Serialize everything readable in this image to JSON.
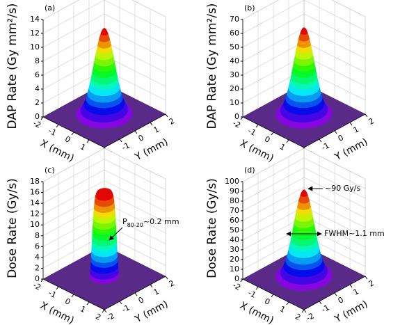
{
  "chart_data": [
    {
      "type": "surface",
      "panel": "(a)",
      "zlabel": "DAP Rate (Gy mm²/s)",
      "xlabel": "X (mm)",
      "ylabel": "Y (mm)",
      "xlim": [
        -2,
        2
      ],
      "xticks": [
        -2,
        -1,
        0,
        1,
        2
      ],
      "ylim": [
        -2,
        2
      ],
      "yticks": [
        -2,
        -1,
        0,
        1,
        2
      ],
      "zlim": [
        0,
        14
      ],
      "zticks": [
        0,
        2,
        4,
        6,
        8,
        10,
        12,
        14
      ],
      "peak": 12.5,
      "fwhm": 1.1,
      "profile": "gaussian",
      "grid": true,
      "annotations": []
    },
    {
      "type": "surface",
      "panel": "(b)",
      "zlabel": "DAP Rate (Gy mm²/s)",
      "xlabel": "X (mm)",
      "ylabel": "Y (mm)",
      "xlim": [
        -2,
        2
      ],
      "xticks": [
        -2,
        -1,
        0,
        1,
        2
      ],
      "ylim": [
        -2,
        2
      ],
      "yticks": [
        -2,
        -1,
        0,
        1,
        2
      ],
      "zlim": [
        0,
        70
      ],
      "zticks": [
        0,
        10,
        20,
        30,
        40,
        50,
        60,
        70
      ],
      "peak": 63,
      "fwhm": 1.1,
      "profile": "gaussian",
      "grid": true,
      "annotations": []
    },
    {
      "type": "surface",
      "panel": "(c)",
      "zlabel": "Dose Rate (Gy/s)",
      "xlabel": "X (mm)",
      "ylabel": "Y (mm)",
      "xlim": [
        -2,
        2
      ],
      "xticks": [
        -2,
        -1,
        0,
        1,
        2
      ],
      "ylim": [
        -2,
        2
      ],
      "yticks": [
        -2,
        -1,
        0,
        1,
        2
      ],
      "zlim": [
        0,
        18
      ],
      "zticks": [
        0,
        2,
        4,
        6,
        8,
        10,
        12,
        14,
        16,
        18
      ],
      "peak": 16,
      "fwhm": 1.1,
      "profile": "flat-top",
      "grid": true,
      "annotations": [
        {
          "text": "P",
          "subscript": "80-20",
          "suffix": "~0.2 mm"
        }
      ]
    },
    {
      "type": "surface",
      "panel": "(d)",
      "zlabel": "Dose Rate (Gy/s)",
      "xlabel": "X (mm)",
      "ylabel": "Y (mm)",
      "xlim": [
        -2,
        2
      ],
      "xticks": [
        -2,
        -1,
        0,
        1,
        2
      ],
      "ylim": [
        -2,
        2
      ],
      "yticks": [
        -2,
        -1,
        0,
        1,
        2
      ],
      "zlim": [
        0,
        100
      ],
      "zticks": [
        0,
        10,
        20,
        30,
        40,
        50,
        60,
        70,
        80,
        90,
        100
      ],
      "peak": 90,
      "fwhm": 1.1,
      "profile": "gaussian",
      "grid": true,
      "annotations": [
        {
          "text": "~90 Gy/s"
        },
        {
          "text": "FWHM~1.1 mm"
        }
      ]
    }
  ]
}
